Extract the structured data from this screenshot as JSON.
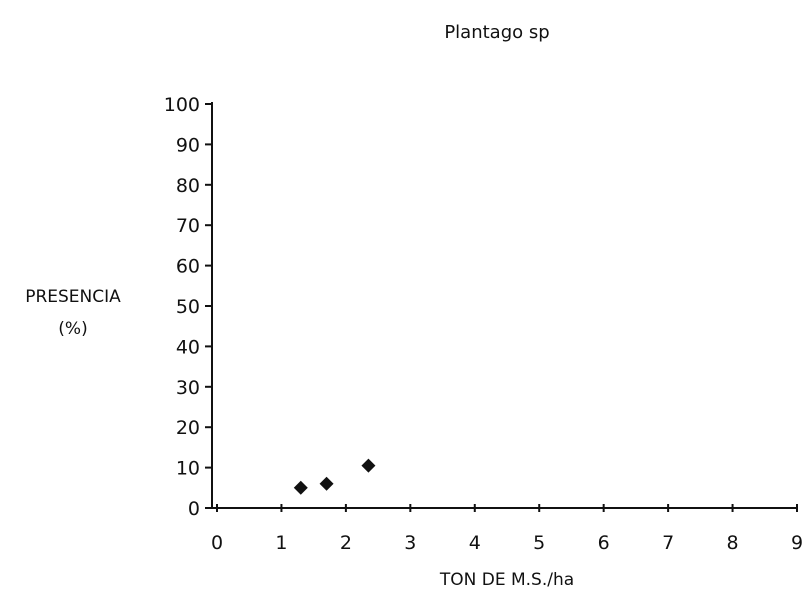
{
  "chart_data": {
    "type": "scatter",
    "title": "Plantago sp",
    "xlabel": "TON DE M.S./ha",
    "ylabel": [
      "PRESENCIA",
      "(%)"
    ],
    "xlim": [
      0,
      9
    ],
    "ylim": [
      0,
      100
    ],
    "x_ticks": [
      0,
      1,
      2,
      3,
      4,
      5,
      6,
      7,
      8,
      9
    ],
    "y_ticks": [
      0,
      10,
      20,
      30,
      40,
      50,
      60,
      70,
      80,
      90,
      100
    ],
    "grid": false,
    "legend": "none",
    "marker": "diamond",
    "color": "#111111",
    "series": [
      {
        "points": [
          {
            "x": 1.3,
            "y": 5
          },
          {
            "x": 1.7,
            "y": 6
          },
          {
            "x": 2.35,
            "y": 10.5
          }
        ]
      }
    ]
  }
}
